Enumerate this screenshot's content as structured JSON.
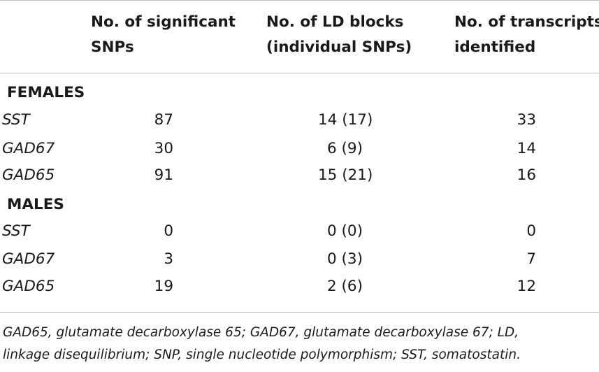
{
  "header": {
    "col1": [
      "No. of significant",
      "SNPs"
    ],
    "col2": [
      "No. of LD blocks",
      "(individual SNPs)"
    ],
    "col3": [
      "No. of transcripts",
      "identified"
    ]
  },
  "sections": [
    {
      "title": "FEMALES",
      "rows": [
        {
          "gene": "SST",
          "snps": "87",
          "ld": "14 (17)",
          "transcripts": "33"
        },
        {
          "gene": "GAD67",
          "snps": "30",
          "ld": "6 (9)",
          "transcripts": "14"
        },
        {
          "gene": "GAD65",
          "snps": "91",
          "ld": "15 (21)",
          "transcripts": "16"
        }
      ]
    },
    {
      "title": "MALES",
      "rows": [
        {
          "gene": "SST",
          "snps": "0",
          "ld": "0 (0)",
          "transcripts": "0"
        },
        {
          "gene": "GAD67",
          "snps": "3",
          "ld": "0 (3)",
          "transcripts": "7"
        },
        {
          "gene": "GAD65",
          "snps": "19",
          "ld": "2 (6)",
          "transcripts": "12"
        }
      ]
    }
  ],
  "footnote": [
    "GAD65, glutamate decarboxylase 65; GAD67, glutamate decarboxylase 67; LD,",
    "linkage disequilibrium; SNP, single nucleotide polymorphism; SST, somatostatin."
  ]
}
